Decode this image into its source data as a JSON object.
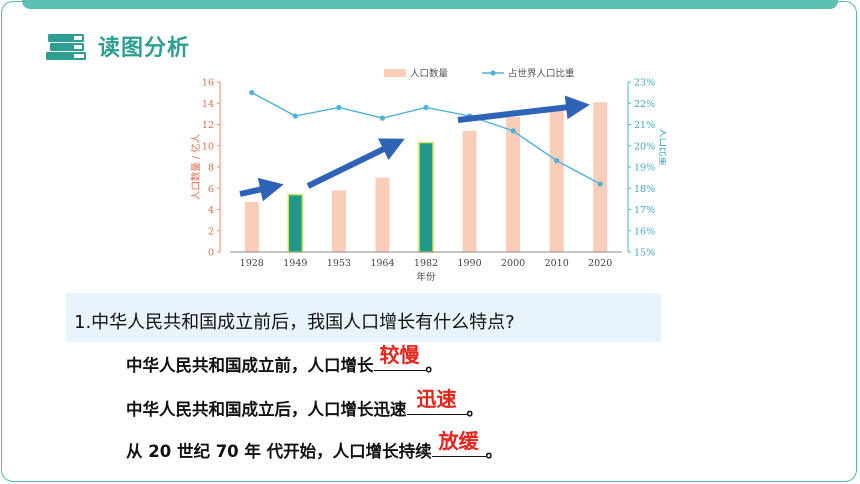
{
  "header": {
    "title": "读图分析",
    "icon": "books-icon"
  },
  "colors": {
    "accent": "#2f9e92",
    "bar": "#f9cdb8",
    "bar_highlight": "#1f9a8a",
    "line": "#4fb3d8",
    "arrow": "#2e63b8",
    "answer": "#e8231a"
  },
  "chart_data": {
    "type": "bar-line",
    "categories": [
      "1928",
      "1949",
      "1953",
      "1964",
      "1982",
      "1990",
      "2000",
      "2010",
      "2020"
    ],
    "series": [
      {
        "name": "人口数量",
        "type": "bar",
        "axis": "left",
        "values": [
          4.7,
          5.4,
          5.8,
          7.0,
          10.3,
          11.4,
          12.7,
          13.4,
          14.1
        ],
        "highlighted": [
          "1949",
          "1982"
        ]
      },
      {
        "name": "占世界人口比重",
        "type": "line",
        "axis": "right",
        "values": [
          22.5,
          21.4,
          21.8,
          21.3,
          21.8,
          21.4,
          20.7,
          19.3,
          18.2
        ]
      }
    ],
    "xlabel": "年份",
    "ylabel_left": "人口数量 / 亿人",
    "ylabel_right": "人口比重",
    "ylim_left": [
      0,
      16
    ],
    "yticks_left": [
      "0",
      "2",
      "4",
      "6",
      "8",
      "10",
      "12",
      "14",
      "16"
    ],
    "ylim_right": [
      15,
      23
    ],
    "yticks_right": [
      "15%",
      "16%",
      "17%",
      "18%",
      "19%",
      "20%",
      "21%",
      "22%",
      "23%"
    ],
    "legend_position": "top"
  },
  "question": {
    "text": "1.中华人民共和国成立前后，我国人口增长有什么特点?",
    "lines": [
      {
        "prefix": "中华人民共和国成立前，人口增长",
        "answer": "较慢",
        "suffix": "。"
      },
      {
        "prefix": "中华人民共和国成立后，人口增长迅速",
        "answer": "迅速",
        "suffix": "。"
      },
      {
        "prefix": "从 20 世纪 70 年 代开始，人口增长持续",
        "answer": "放缓",
        "suffix": "。"
      }
    ]
  }
}
